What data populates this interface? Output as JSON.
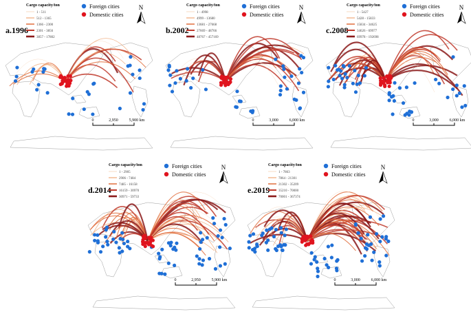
{
  "panels": [
    {
      "label": "a.1996",
      "legend_title": "Cargo capacity/ton",
      "legend_ranges": [
        "1 - 511",
        "512 - 1365",
        "1366 - 2300",
        "2301 - 3856",
        "3857 - 17802"
      ],
      "foreign": "Foreign cities",
      "domestic": "Domestic cities",
      "north": "N",
      "scale": [
        "0",
        "2,950",
        "5,900 km"
      ]
    },
    {
      "label": "b.2002",
      "legend_title": "Cargo capacity/ton",
      "legend_ranges": [
        "1 - 4998",
        "4999 - 13680",
        "13681 - 27668",
        "27669 - 48766",
        "48767 - 457169"
      ],
      "foreign": "Foreign cities",
      "domestic": "Domestic cities",
      "north": "N",
      "scale": [
        "0",
        "3,000",
        "6,000 km"
      ]
    },
    {
      "label": "c.2008",
      "legend_title": "Cargo capacity/ton",
      "legend_ranges": [
        "1 - 5427",
        "5428 - 15833",
        "15834 - 34625",
        "34626 - 69977",
        "69978 - 192698"
      ],
      "foreign": "Foreign cities",
      "domestic": "Domestic cities",
      "north": "N",
      "scale": [
        "0",
        "3,000",
        "6,000 km"
      ]
    },
    {
      "label": "d.2014",
      "legend_title": "Cargo capacity/ton",
      "legend_ranges": [
        "1 - 2905",
        "2906 - 7484",
        "7485 - 16158",
        "16159 - 30970",
        "30971 - 59733"
      ],
      "foreign": "Foreign cities",
      "domestic": "Domestic cities",
      "north": "N",
      "scale": [
        "0",
        "2,950",
        "5,900 km"
      ]
    },
    {
      "label": "e.2019",
      "legend_title": "Cargo capacity/ton",
      "legend_ranges": [
        "1 - 7863",
        "7864 - 21301",
        "21302 - 35209",
        "35210 - 70000",
        "70001 - 367374"
      ],
      "foreign": "Foreign cities",
      "domestic": "Domestic cities",
      "north": "N",
      "scale": [
        "0",
        "3,000",
        "6,000 km"
      ]
    }
  ]
}
